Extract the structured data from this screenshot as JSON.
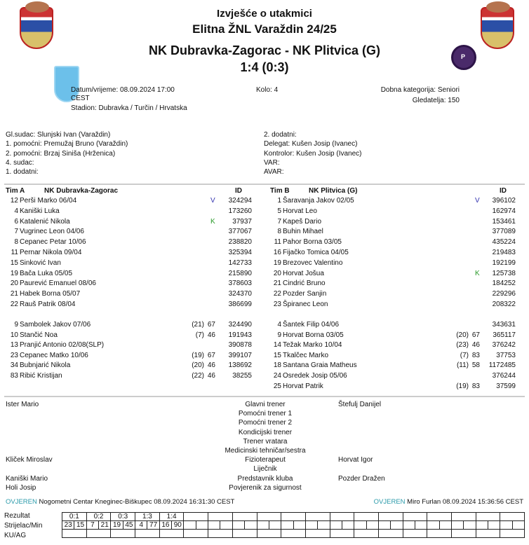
{
  "header": {
    "title": "Izvješće o utakmici",
    "competition": "Elitna ŽNL Varaždin 24/25",
    "match": "NK Dubravka-Zagorac - NK Plitvica (G)",
    "score": "1:4 (0:3)"
  },
  "info": {
    "datetime": "Datum/vrijeme: 08.09.2024 17:00",
    "tz": "CEST",
    "stadium": "Stadion: Dubravka / Turčin / Hrvatska",
    "round": "Kolo: 4",
    "category": "Dobna kategorija: Seniori",
    "attendance": "Gledatelja: 150"
  },
  "officials_left": [
    "Gl.sudac: Slunjski Ivan (Varaždin)",
    "1. pomoćni: Premužaj Bruno (Varaždin)",
    "2. pomoćni: Brzaj Siniša (Hrženica)",
    "4. sudac:",
    "1. dodatni:"
  ],
  "officials_right": [
    "2. dodatni:",
    "Delegat: Kušen Josip (Ivanec)",
    "Kontrolor: Kušen Josip (Ivanec)",
    "VAR:",
    "AVAR:"
  ],
  "teamA": {
    "label": "Tim A",
    "name": "NK Dubravka-Zagorac",
    "id_header": "ID",
    "starters": [
      [
        "12",
        "Perši Marko 06/04",
        "V",
        "",
        "",
        "324294"
      ],
      [
        "4",
        "Kaniški Luka",
        "",
        "",
        "",
        "173260"
      ],
      [
        "6",
        "Katalenić Nikola",
        "K",
        "",
        "",
        "37937"
      ],
      [
        "7",
        "Vugrinec Leon 04/06",
        "",
        "",
        "",
        "377067"
      ],
      [
        "8",
        "Cepanec Petar 10/06",
        "",
        "",
        "",
        "238820"
      ],
      [
        "11",
        "Pernar Nikola 09/04",
        "",
        "",
        "",
        "325394"
      ],
      [
        "15",
        "Sinković Ivan",
        "",
        "",
        "",
        "142733"
      ],
      [
        "19",
        "Bača Luka 05/05",
        "",
        "",
        "",
        "215890"
      ],
      [
        "20",
        "Paurević Emanuel 08/06",
        "",
        "",
        "",
        "378603"
      ],
      [
        "21",
        "Habek Borna 05/07",
        "",
        "",
        "",
        "324370"
      ],
      [
        "22",
        "Rauš Patrik 08/04",
        "",
        "",
        "",
        "386699"
      ]
    ],
    "subs": [
      [
        "9",
        "Sambolek Jakov 07/06",
        "",
        "(21)",
        "67",
        "324490"
      ],
      [
        "10",
        "Stančić Noa",
        "",
        "(7)",
        "46",
        "191943"
      ],
      [
        "13",
        "Pranjić Antonio 02/08(SLP)",
        "",
        "",
        "",
        "390878"
      ],
      [
        "23",
        "Cepanec Matko 10/06",
        "",
        "(19)",
        "67",
        "399107"
      ],
      [
        "34",
        "Bubnjarić Nikola",
        "",
        "(20)",
        "46",
        "138692"
      ],
      [
        "83",
        "Ribić Kristijan",
        "",
        "(22)",
        "46",
        "38255"
      ]
    ]
  },
  "teamB": {
    "label": "Tim B",
    "name": "NK Plitvica (G)",
    "id_header": "ID",
    "starters": [
      [
        "1",
        "Šaravanja Jakov 02/05",
        "V",
        "",
        "",
        "396102"
      ],
      [
        "5",
        "Horvat  Leo",
        "",
        "",
        "",
        "162974"
      ],
      [
        "7",
        "Kapeš Dario",
        "",
        "",
        "",
        "153461"
      ],
      [
        "8",
        "Buhin Mihael",
        "",
        "",
        "",
        "377089"
      ],
      [
        "11",
        "Pahor Borna 03/05",
        "",
        "",
        "",
        "435224"
      ],
      [
        "16",
        "Fijačko Tomica 04/05",
        "",
        "",
        "",
        "219483"
      ],
      [
        "19",
        "Brezovec Valentino",
        "",
        "",
        "",
        "192199"
      ],
      [
        "20",
        "Horvat Jošua",
        "K",
        "",
        "",
        "125738"
      ],
      [
        "21",
        "Cindrić Bruno",
        "",
        "",
        "",
        "184252"
      ],
      [
        "22",
        "Pozder Sanjin",
        "",
        "",
        "",
        "229296"
      ],
      [
        "23",
        "Špiranec Leon",
        "",
        "",
        "",
        "208322"
      ]
    ],
    "subs": [
      [
        "4",
        "Šantek Filip 04/06",
        "",
        "",
        "",
        "343631"
      ],
      [
        "9",
        "Horvat Borna 03/05",
        "",
        "(20)",
        "67",
        "365117"
      ],
      [
        "14",
        "Težak Marko 10/04",
        "",
        "(23)",
        "46",
        "376242"
      ],
      [
        "15",
        "Tkalčec Marko",
        "",
        "(7)",
        "83",
        "37753"
      ],
      [
        "18",
        "Santana Graia Matheus",
        "",
        "(11)",
        "58",
        "1172485"
      ],
      [
        "24",
        "Osredek Josip 05/06",
        "",
        "",
        "",
        "376244"
      ],
      [
        "25",
        "Horvat Patrik",
        "",
        "(19)",
        "83",
        "37599"
      ]
    ]
  },
  "staff": [
    [
      "Ister Mario",
      "Glavni trener",
      "Štefulj Danijel"
    ],
    [
      "",
      "Pomoćni trener 1",
      ""
    ],
    [
      "",
      "Pomoćni trener 2",
      ""
    ],
    [
      "",
      "Kondicijski trener",
      ""
    ],
    [
      "",
      "Trener vratara",
      ""
    ],
    [
      "",
      "Medicinski tehničar/sestra",
      ""
    ],
    [
      "Kliček Miroslav",
      "Fizioterapeut",
      "Horvat Igor"
    ],
    [
      "",
      "Liječnik",
      ""
    ],
    [
      "Kaniški Mario",
      "Predstavnik kluba",
      "Pozder Dražen"
    ],
    [
      "Holi Josip",
      "Povjerenik za sigurnost",
      ""
    ]
  ],
  "verification": {
    "left_status": "OVJEREN",
    "left_text": "Nogometni Centar Kneginec-Biškupec 08.09.2024 16:31:30 CEST",
    "right_status": "OVJEREN",
    "right_text": "Miro Furlan 08.09.2024 15:36:56 CEST"
  },
  "grid": {
    "labels": [
      "Rezultat",
      "Strijelac/Min",
      "KU/AG"
    ],
    "results": [
      "0:1",
      "0:2",
      "0:3",
      "1:3",
      "1:4"
    ],
    "scorers": [
      [
        "23",
        "15"
      ],
      [
        "7",
        "21"
      ],
      [
        "19",
        "45"
      ],
      [
        "4",
        "77"
      ],
      [
        "16",
        "90"
      ]
    ]
  },
  "colors": {
    "verified": "#2a9aaa",
    "captain": "#2a9a2a",
    "goalkeeper": "#3434b0"
  }
}
